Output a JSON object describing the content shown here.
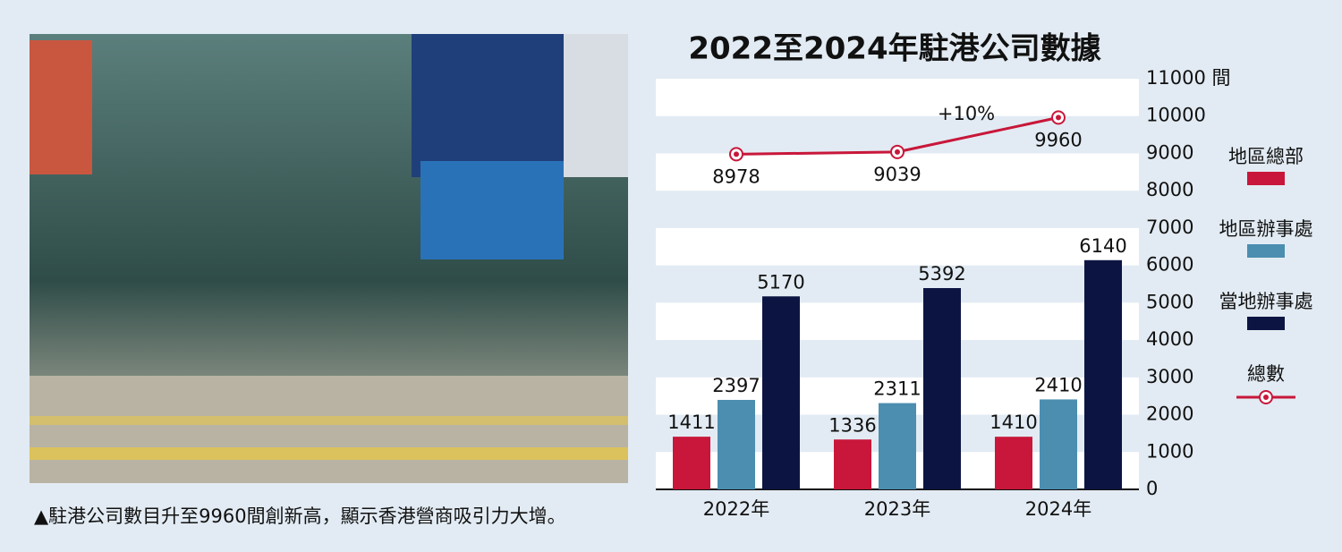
{
  "caption": "▲駐港公司數目升至9960間創新高，顯示香港營商吸引力大增。",
  "chart_data": {
    "type": "bar",
    "title": "2022至2024年駐港公司數據",
    "categories": [
      "2022年",
      "2023年",
      "2024年"
    ],
    "series": [
      {
        "name": "地區總部",
        "color": "#c8173a",
        "values": [
          1411,
          1336,
          1410
        ]
      },
      {
        "name": "地區辦事處",
        "color": "#4b8eb0",
        "values": [
          2397,
          2311,
          2410
        ]
      },
      {
        "name": "當地辦事處",
        "color": "#0c1542",
        "values": [
          5170,
          5392,
          6140
        ]
      },
      {
        "name": "總數",
        "color": "#c8173a",
        "type": "line",
        "values": [
          8978,
          9039,
          9960
        ]
      }
    ],
    "annotation": "+10%",
    "ylim": [
      0,
      11000
    ],
    "yticks": [
      0,
      1000,
      2000,
      3000,
      4000,
      5000,
      6000,
      7000,
      8000,
      9000,
      10000,
      {
        "value": 11000,
        "label": "11000 間"
      }
    ],
    "grid": true,
    "legend": "right"
  }
}
